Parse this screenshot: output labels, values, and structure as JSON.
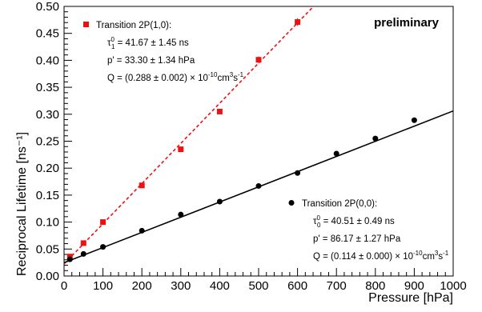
{
  "chart_data": {
    "type": "scatter",
    "annotation": "preliminary",
    "xlabel": "Pressure [hPa]",
    "ylabel": "Reciprocal Lifetime [ns⁻¹]",
    "xlim": [
      0,
      1000
    ],
    "ylim": [
      0,
      0.5
    ],
    "x_ticks": [
      0,
      100,
      200,
      300,
      400,
      500,
      600,
      700,
      800,
      900,
      1000
    ],
    "y_ticks": [
      0.0,
      0.05,
      0.1,
      0.15,
      0.2,
      0.25,
      0.3,
      0.35,
      0.4,
      0.45,
      0.5
    ],
    "x_tick_labels": [
      "0",
      "100",
      "200",
      "300",
      "400",
      "500",
      "600",
      "700",
      "800",
      "900",
      "1000"
    ],
    "y_tick_labels": [
      "0.00",
      "0.05",
      "0.10",
      "0.15",
      "0.20",
      "0.25",
      "0.30",
      "0.35",
      "0.40",
      "0.45",
      "0.50"
    ],
    "series": [
      {
        "name": "Transition 2P(1,0):",
        "color": "#ee1111",
        "marker": "square",
        "line_style": "dashed",
        "fit": {
          "slope": 0.000745,
          "intercept": 0.0224,
          "x_range": [
            0,
            650
          ]
        },
        "x": [
          15,
          50,
          100,
          200,
          300,
          400,
          500,
          600
        ],
        "y": [
          0.036,
          0.061,
          0.1,
          0.168,
          0.235,
          0.305,
          0.401,
          0.471
        ],
        "yerr": [
          0.003,
          0.003,
          0.003,
          0.003,
          0.003,
          0.004,
          0.006,
          0.007
        ],
        "legend_lines": [
          {
            "sym": "τ",
            "sup": "0",
            "sub": "1",
            "text": " = 41.67 ± 1.45 ns"
          },
          {
            "text": "p' = 33.30 ± 1.34 hPa"
          },
          {
            "text": "Q = (0.288 ± 0.002) × 10",
            "sup": "-10",
            "text2": "cm",
            "sup2": "3",
            "text3": "s",
            "sup3": "-1"
          }
        ]
      },
      {
        "name": "Transition 2P(0,0):",
        "color": "#000000",
        "marker": "circle",
        "line_style": "solid",
        "fit": {
          "slope": 0.0002815,
          "intercept": 0.0246,
          "x_range": [
            0,
            1000
          ]
        },
        "x": [
          15,
          50,
          100,
          200,
          300,
          400,
          500,
          600,
          700,
          800,
          900
        ],
        "y": [
          0.031,
          0.041,
          0.054,
          0.084,
          0.114,
          0.138,
          0.167,
          0.191,
          0.227,
          0.255,
          0.289
        ],
        "legend_lines": [
          {
            "sym": "τ",
            "sup": "0",
            "sub": "0",
            "text": " = 40.51 ± 0.49 ns"
          },
          {
            "text": "p' = 86.17 ± 1.27 hPa"
          },
          {
            "text": "Q = (0.114 ± 0.000) × 10",
            "sup": "-10",
            "text2": "cm",
            "sup2": "3",
            "text3": "s",
            "sup3": "-1"
          }
        ]
      }
    ]
  }
}
